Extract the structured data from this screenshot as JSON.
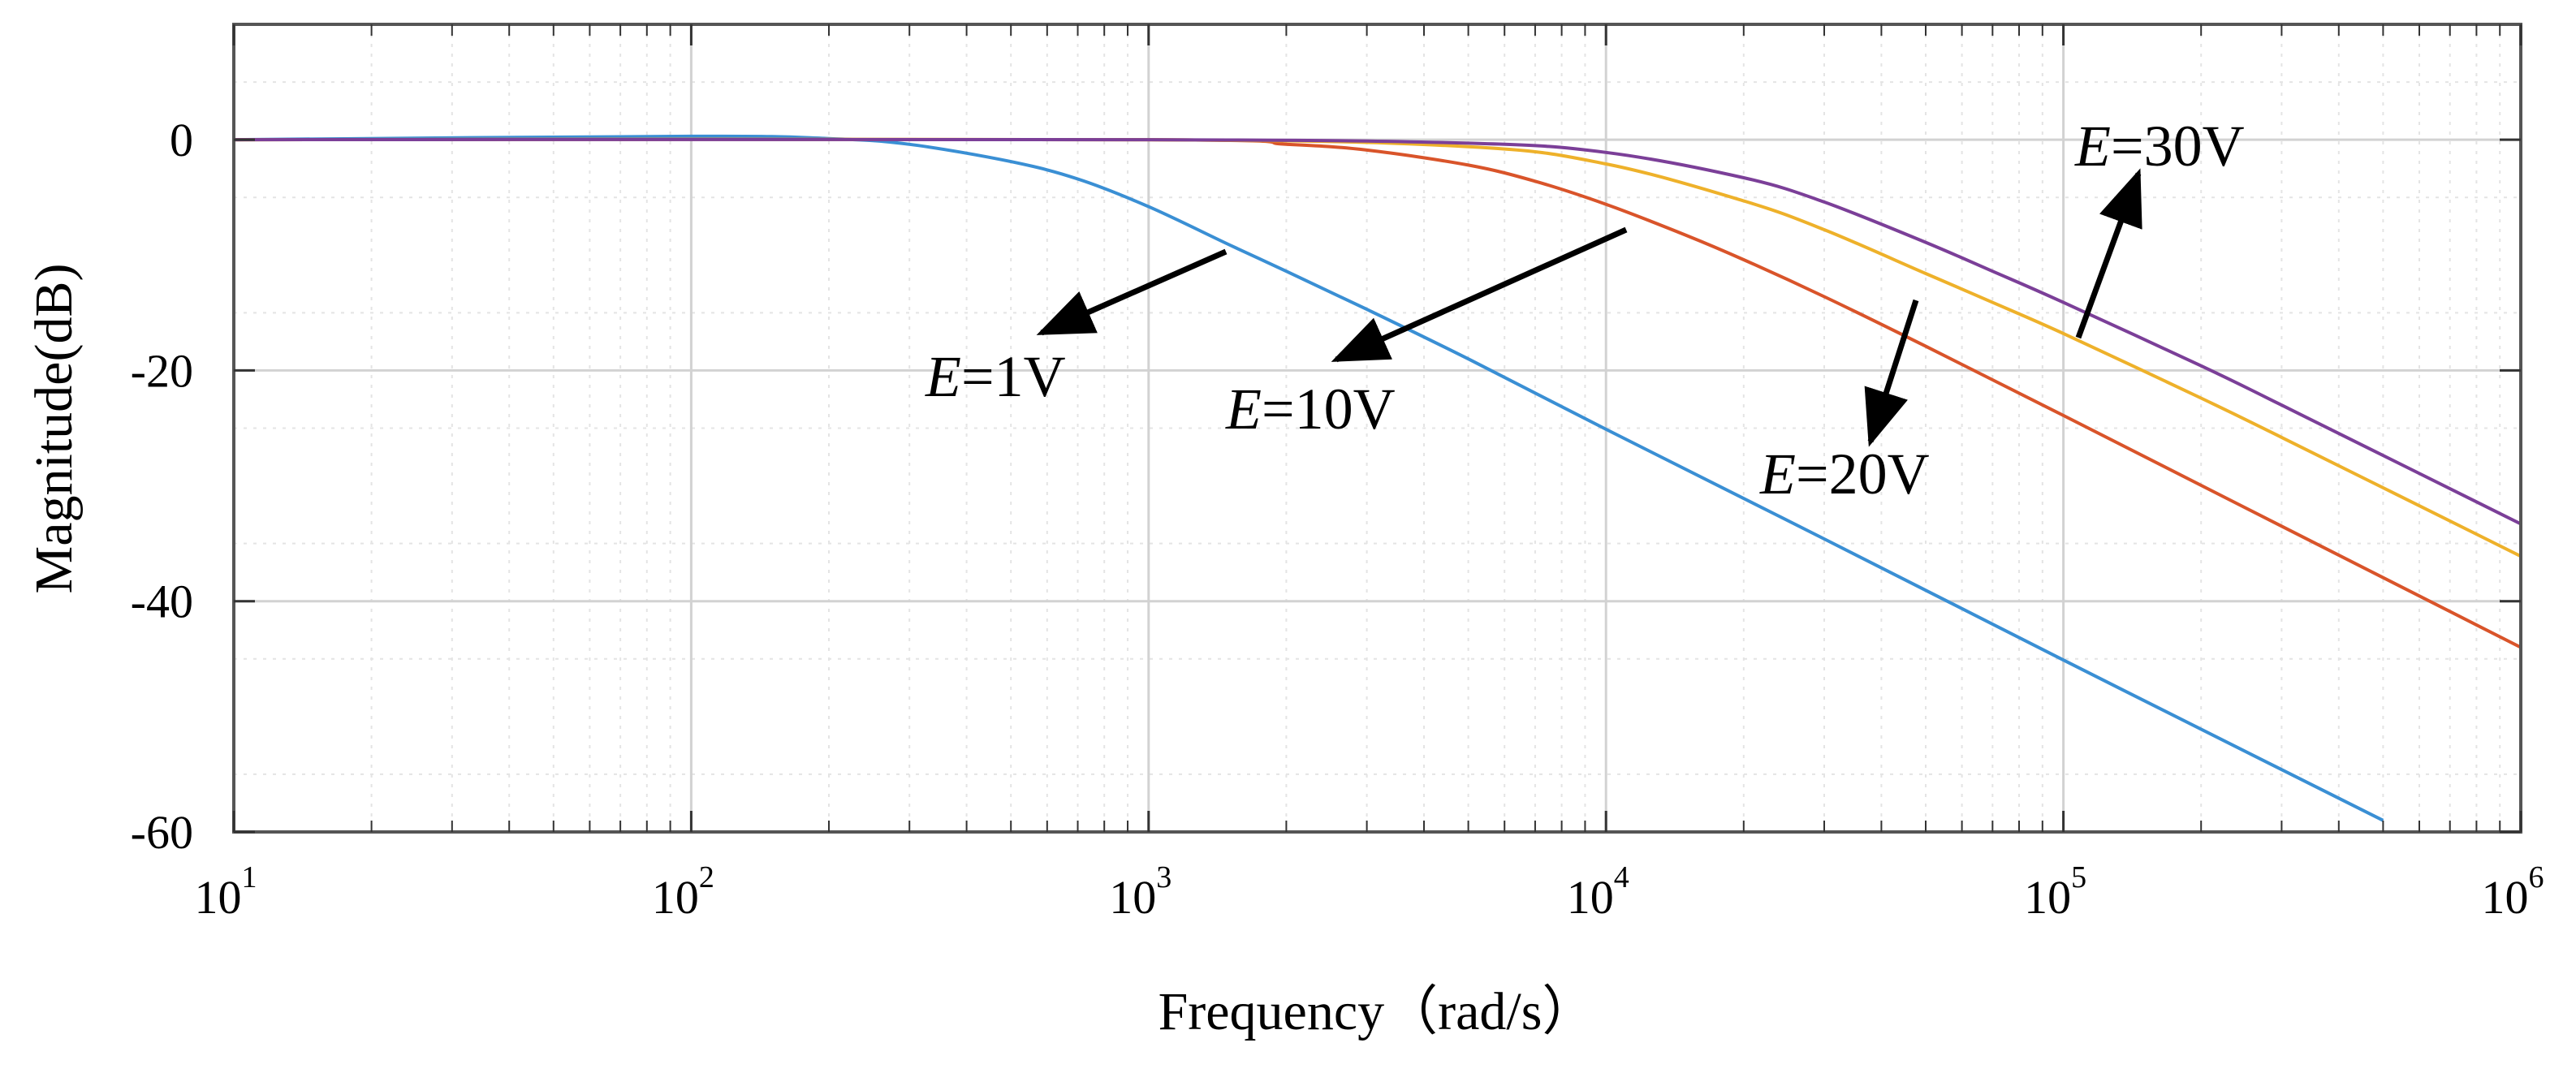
{
  "chart_data": {
    "type": "line",
    "title": "",
    "xlabel": "Frequency（rad/s）",
    "ylabel": "Magnitude(dB)",
    "xscale": "log",
    "xlim": [
      10,
      1000000
    ],
    "ylim": [
      -60,
      10
    ],
    "grid": true,
    "x_ticks": [
      {
        "value": 10,
        "base": "10",
        "exp": "1"
      },
      {
        "value": 100,
        "base": "10",
        "exp": "2"
      },
      {
        "value": 1000,
        "base": "10",
        "exp": "3"
      },
      {
        "value": 10000,
        "base": "10",
        "exp": "4"
      },
      {
        "value": 100000,
        "base": "10",
        "exp": "5"
      },
      {
        "value": 1000000,
        "base": "10",
        "exp": "6"
      }
    ],
    "y_ticks": [
      {
        "value": 0,
        "label": "0"
      },
      {
        "value": -20,
        "label": "-20"
      },
      {
        "value": -40,
        "label": "-40"
      },
      {
        "value": -60,
        "label": "-60"
      }
    ],
    "series": [
      {
        "name": "E=1V",
        "color": "#3a8fd4",
        "x": [
          10,
          100,
          200,
          300,
          500,
          700,
          1000,
          1500,
          2000,
          3000,
          5000,
          10000,
          30000,
          100000,
          300000,
          500000
        ],
        "y": [
          0,
          0.3,
          0.1,
          -0.4,
          -1.9,
          -3.4,
          -5.8,
          -9.1,
          -11.4,
          -14.7,
          -19.0,
          -25.1,
          -34.6,
          -45.1,
          -54.6,
          -59.0
        ]
      },
      {
        "name": "E=10V",
        "color": "#d9542a",
        "x": [
          10,
          1000,
          2000,
          3000,
          5000,
          7000,
          10000,
          15000,
          20000,
          30000,
          50000,
          100000,
          300000,
          1000000
        ],
        "y": [
          0,
          0,
          -0.4,
          -0.9,
          -2.2,
          -3.6,
          -5.6,
          -8.3,
          -10.4,
          -13.6,
          -17.9,
          -23.9,
          -33.5,
          -44.0
        ]
      },
      {
        "name": "E=20V",
        "color": "#eeb12a",
        "x": [
          10,
          1000,
          5000,
          10000,
          20000,
          30000,
          50000,
          70000,
          100000,
          200000,
          300000,
          1000000
        ],
        "y": [
          0,
          0,
          -0.6,
          -2.1,
          -5.3,
          -7.8,
          -11.6,
          -14.1,
          -16.8,
          -22.4,
          -25.8,
          -36.1
        ]
      },
      {
        "name": "E=30V",
        "color": "#7b3f98",
        "x": [
          10,
          1000,
          5000,
          10000,
          20000,
          30000,
          50000,
          70000,
          100000,
          200000,
          300000,
          1000000
        ],
        "y": [
          0,
          0,
          -0.3,
          -1.1,
          -3.3,
          -5.4,
          -8.9,
          -11.4,
          -14.1,
          -19.6,
          -23.0,
          -33.3
        ]
      }
    ],
    "annotations": [
      {
        "series": "E=1V",
        "prefix": "E",
        "suffix": "=1V"
      },
      {
        "series": "E=10V",
        "prefix": "E",
        "suffix": "=10V"
      },
      {
        "series": "E=20V",
        "prefix": "E",
        "suffix": "=20V"
      },
      {
        "series": "E=30V",
        "prefix": "E",
        "suffix": "=30V"
      }
    ]
  }
}
